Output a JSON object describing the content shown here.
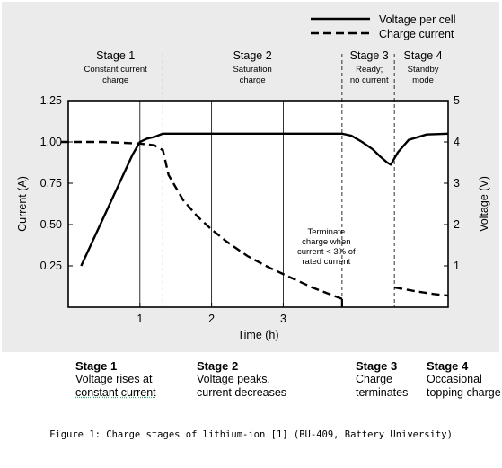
{
  "chart_data": {
    "type": "line",
    "xlabel": "Time (h)",
    "ylabel_left": "Current (A)",
    "ylabel_right": "Voltage (V)",
    "xlim": [
      0,
      5.3
    ],
    "x_ticks": [
      {
        "value": 1,
        "label": "1"
      },
      {
        "value": 2,
        "label": "2"
      },
      {
        "value": 3,
        "label": "3"
      }
    ],
    "ylim_left": [
      0,
      1.25
    ],
    "y_ticks_left": [
      "0.25",
      "0.50",
      "0.75",
      "1.00",
      "1.25"
    ],
    "ylim_right": [
      0,
      5
    ],
    "y_ticks_right": [
      "1",
      "2",
      "3",
      "4",
      "5"
    ],
    "grid": "vertical at x=1, 2, 3",
    "legend": {
      "position": "top-right",
      "entries": [
        "Voltage per cell",
        "Charge current"
      ]
    },
    "series": [
      {
        "name": "Voltage per cell",
        "style": "solid",
        "axis": "right",
        "x": [
          0.18,
          0.9,
          1.0,
          1.1,
          1.2,
          1.32,
          3.0,
          3.82,
          3.95,
          4.1,
          4.25,
          4.35,
          4.45,
          4.5,
          4.6,
          4.75,
          5.0,
          5.3
        ],
        "values": [
          1.0,
          3.7,
          4.0,
          4.08,
          4.12,
          4.2,
          4.2,
          4.2,
          4.15,
          4.0,
          3.82,
          3.65,
          3.5,
          3.45,
          3.75,
          4.05,
          4.18,
          4.2
        ]
      },
      {
        "name": "Charge current",
        "style": "dashed",
        "axis": "left",
        "segments": [
          {
            "x": [
              -0.1,
              0.5,
              1.0,
              1.2,
              1.32,
              1.4,
              1.6,
              1.8,
              2.0,
              2.2,
              2.5,
              2.8,
              3.1,
              3.4,
              3.7,
              3.82
            ],
            "values": [
              1.0,
              1.0,
              0.99,
              0.98,
              0.95,
              0.8,
              0.65,
              0.55,
              0.47,
              0.4,
              0.31,
              0.24,
              0.18,
              0.12,
              0.07,
              0.05
            ]
          },
          {
            "x": [
              4.55,
              4.8,
              5.1,
              5.3
            ],
            "values": [
              0.12,
              0.1,
              0.08,
              0.07
            ]
          }
        ]
      }
    ],
    "stage_boundaries_hours": [
      1.32,
      3.82,
      4.55
    ],
    "stages": [
      {
        "title": "Stage 1",
        "subtitle": [
          "Constant current",
          "charge"
        ],
        "x_center": 0.66
      },
      {
        "title": "Stage 2",
        "subtitle": [
          "Saturation",
          "charge"
        ],
        "x_center": 2.57
      },
      {
        "title": "Stage 3",
        "subtitle": [
          "Ready;",
          "no current"
        ],
        "x_center": 4.2
      },
      {
        "title": "Stage 4",
        "subtitle": [
          "Standby",
          "mode"
        ],
        "x_center": 4.95
      }
    ],
    "annotation": {
      "lines": [
        "Terminate",
        "charge when",
        "current < 3% of",
        "rated current"
      ],
      "x": 3.6
    }
  },
  "captions": [
    {
      "title": "Stage 1",
      "line1": "Voltage rises at",
      "line2": "constant current"
    },
    {
      "title": "Stage 2",
      "line1": "Voltage peaks,",
      "line2": "current decreases"
    },
    {
      "title": "Stage 3",
      "line1": "Charge",
      "line2": "terminates"
    },
    {
      "title": "Stage 4",
      "line1": "Occasional",
      "line2": "topping charge"
    }
  ],
  "figure_caption": "Figure 1: Charge stages of lithium-ion [1] (BU-409, Battery University)"
}
